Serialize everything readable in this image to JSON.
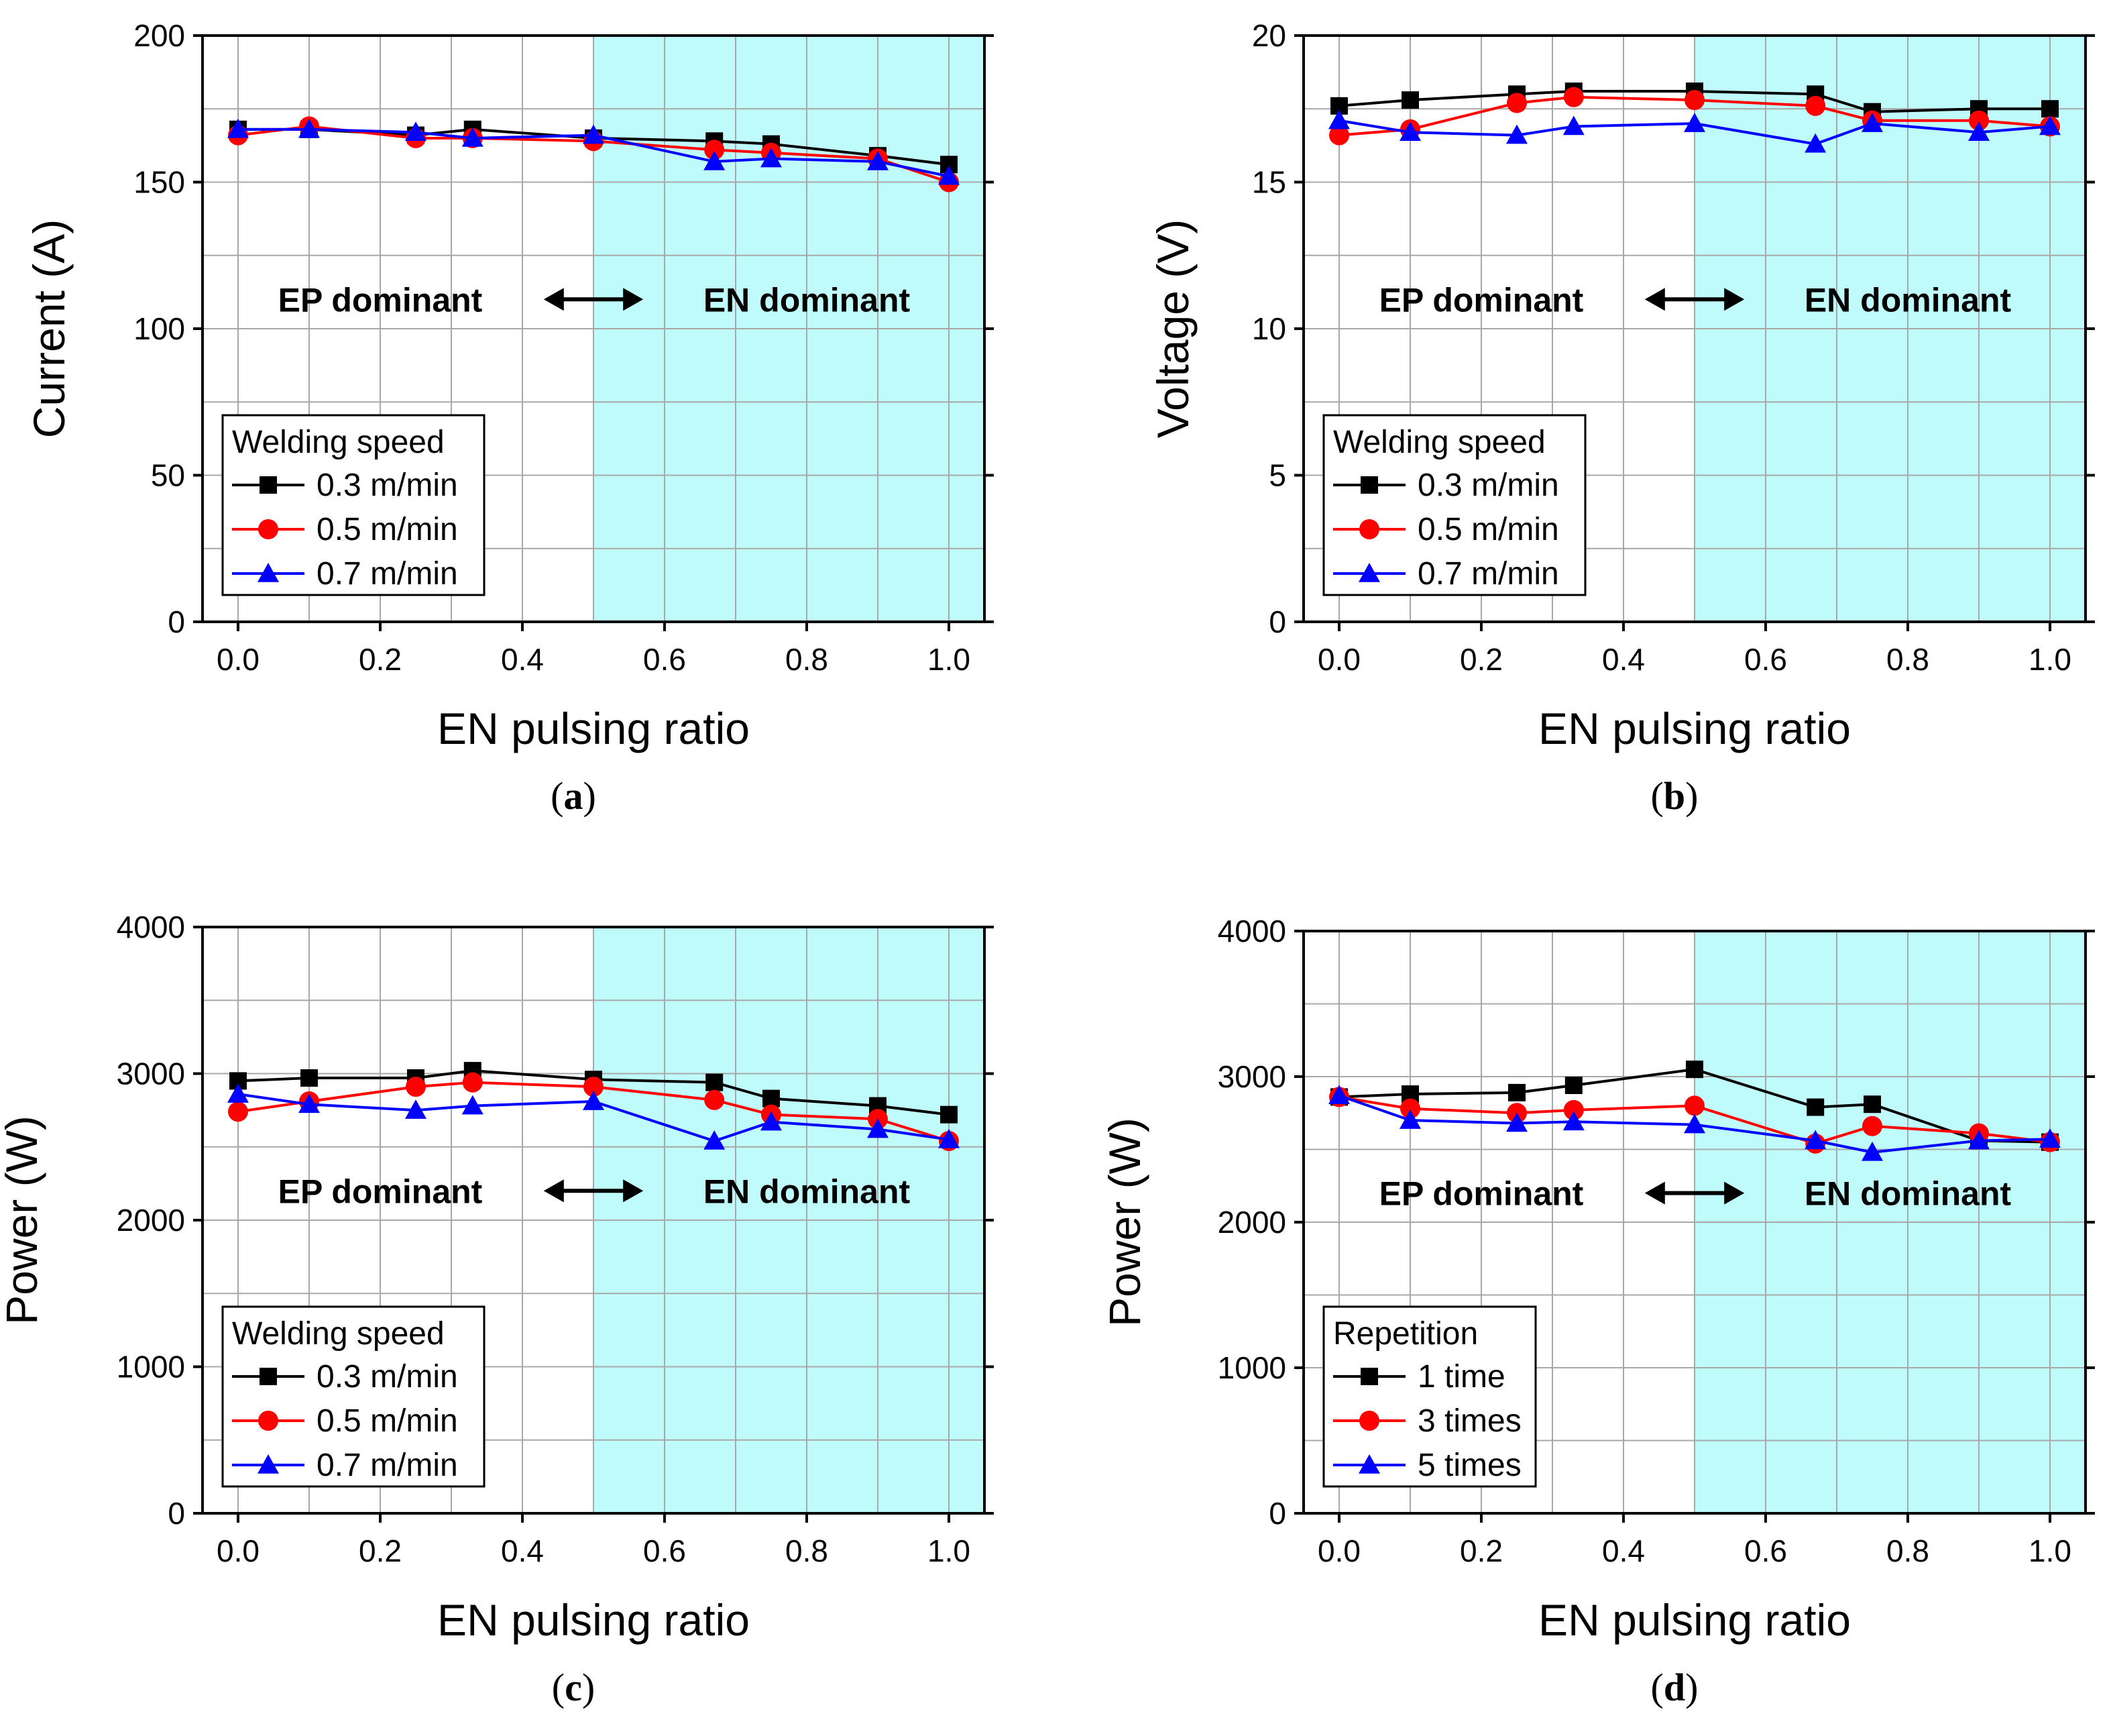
{
  "figure_title": "",
  "colors": {
    "shaded_region": "#c0fbfb",
    "grid": "#a8a8a8",
    "series_1": "#000000",
    "series_2": "#ff0000",
    "series_3": "#0000ff"
  },
  "chart_data": [
    {
      "id": "a",
      "type": "line",
      "caption_letter": "a",
      "xlabel": "EN pulsing ratio",
      "ylabel": "Current (A)",
      "xlim": [
        -0.05,
        1.05
      ],
      "ylim": [
        0,
        200
      ],
      "xticks": [
        0.0,
        0.2,
        0.4,
        0.6,
        0.8,
        1.0
      ],
      "xtick_labels": [
        "0.0",
        "0.2",
        "0.4",
        "0.6",
        "0.8",
        "1.0"
      ],
      "yticks": [
        0,
        50,
        100,
        150,
        200
      ],
      "ytick_labels": [
        "0",
        "50",
        "100",
        "150",
        "200"
      ],
      "grid": true,
      "shaded_x_from": 0.5,
      "region_left_label": "EP dominant",
      "region_right_label": "EN dominant",
      "arrow_symbol": "double-headed-arrow",
      "legend_title": "Welding speed",
      "legend_position": "lower-left",
      "x": [
        0.0,
        0.1,
        0.25,
        0.33,
        0.5,
        0.67,
        0.75,
        0.9,
        1.0
      ],
      "series": [
        {
          "name": "0.3 m/min",
          "marker": "square",
          "color": "#000000",
          "values": [
            168,
            168,
            166,
            168,
            165,
            164,
            163,
            159,
            156
          ]
        },
        {
          "name": "0.5 m/min",
          "marker": "circle",
          "color": "#ff0000",
          "values": [
            166,
            169,
            165,
            165,
            164,
            161,
            160,
            158,
            150
          ]
        },
        {
          "name": "0.7 m/min",
          "marker": "triangle",
          "color": "#0000ff",
          "values": [
            168,
            168,
            167,
            165,
            166,
            157,
            158,
            157,
            152
          ]
        }
      ]
    },
    {
      "id": "b",
      "type": "line",
      "caption_letter": "b",
      "xlabel": "EN pulsing ratio",
      "ylabel": "Voltage (V)",
      "xlim": [
        -0.05,
        1.05
      ],
      "ylim": [
        0,
        20
      ],
      "xticks": [
        0.0,
        0.2,
        0.4,
        0.6,
        0.8,
        1.0
      ],
      "xtick_labels": [
        "0.0",
        "0.2",
        "0.4",
        "0.6",
        "0.8",
        "1.0"
      ],
      "yticks": [
        0,
        5,
        10,
        15,
        20
      ],
      "ytick_labels": [
        "0",
        "5",
        "10",
        "15",
        "20"
      ],
      "grid": true,
      "shaded_x_from": 0.5,
      "region_left_label": "EP dominant",
      "region_right_label": "EN dominant",
      "arrow_symbol": "double-headed-arrow",
      "legend_title": "Welding speed",
      "legend_position": "lower-left",
      "x": [
        0.0,
        0.1,
        0.25,
        0.33,
        0.5,
        0.67,
        0.75,
        0.9,
        1.0
      ],
      "series": [
        {
          "name": "0.3 m/min",
          "marker": "square",
          "color": "#000000",
          "values": [
            17.6,
            17.8,
            18.0,
            18.1,
            18.1,
            18.0,
            17.4,
            17.5,
            17.5
          ]
        },
        {
          "name": "0.5 m/min",
          "marker": "circle",
          "color": "#ff0000",
          "values": [
            16.6,
            16.8,
            17.7,
            17.9,
            17.8,
            17.6,
            17.1,
            17.1,
            16.9
          ]
        },
        {
          "name": "0.7 m/min",
          "marker": "triangle",
          "color": "#0000ff",
          "values": [
            17.1,
            16.7,
            16.6,
            16.9,
            17.0,
            16.3,
            17.0,
            16.7,
            16.9
          ]
        }
      ]
    },
    {
      "id": "c",
      "type": "line",
      "caption_letter": "c",
      "xlabel": "EN pulsing ratio",
      "ylabel": "Power (W)",
      "xlim": [
        -0.05,
        1.05
      ],
      "ylim": [
        0,
        4000
      ],
      "xticks": [
        0.0,
        0.2,
        0.4,
        0.6,
        0.8,
        1.0
      ],
      "xtick_labels": [
        "0.0",
        "0.2",
        "0.4",
        "0.6",
        "0.8",
        "1.0"
      ],
      "yticks": [
        0,
        1000,
        2000,
        3000,
        4000
      ],
      "ytick_labels": [
        "0",
        "1000",
        "2000",
        "3000",
        "4000"
      ],
      "grid": true,
      "shaded_x_from": 0.5,
      "region_left_label": "EP dominant",
      "region_right_label": "EN dominant",
      "arrow_symbol": "double-headed-arrow",
      "legend_title": "Welding speed",
      "legend_position": "lower-left",
      "x": [
        0.0,
        0.1,
        0.25,
        0.33,
        0.5,
        0.67,
        0.75,
        0.9,
        1.0
      ],
      "series": [
        {
          "name": "0.3 m/min",
          "marker": "square",
          "color": "#000000",
          "values": [
            2950,
            2970,
            2970,
            3020,
            2960,
            2940,
            2830,
            2780,
            2720
          ]
        },
        {
          "name": "0.5 m/min",
          "marker": "circle",
          "color": "#ff0000",
          "values": [
            2740,
            2810,
            2910,
            2940,
            2910,
            2820,
            2720,
            2690,
            2540
          ]
        },
        {
          "name": "0.7 m/min",
          "marker": "triangle",
          "color": "#0000ff",
          "values": [
            2860,
            2790,
            2750,
            2780,
            2810,
            2540,
            2670,
            2620,
            2550
          ]
        }
      ]
    },
    {
      "id": "d",
      "type": "line",
      "caption_letter": "d",
      "xlabel": "EN pulsing ratio",
      "ylabel": "Power (W)",
      "xlim": [
        -0.05,
        1.05
      ],
      "ylim": [
        0,
        4000
      ],
      "xticks": [
        0.0,
        0.2,
        0.4,
        0.6,
        0.8,
        1.0
      ],
      "xtick_labels": [
        "0.0",
        "0.2",
        "0.4",
        "0.6",
        "0.8",
        "1.0"
      ],
      "yticks": [
        0,
        1000,
        2000,
        3000,
        4000
      ],
      "ytick_labels": [
        "0",
        "1000",
        "2000",
        "3000",
        "4000"
      ],
      "grid": true,
      "shaded_x_from": 0.5,
      "region_left_label": "EP dominant",
      "region_right_label": "EN dominant",
      "arrow_symbol": "double-headed-arrow",
      "legend_title": "Repetition",
      "legend_position": "lower-left",
      "x": [
        0.0,
        0.1,
        0.25,
        0.33,
        0.5,
        0.67,
        0.75,
        0.9,
        1.0
      ],
      "series": [
        {
          "name": "1 time",
          "marker": "square",
          "color": "#000000",
          "values": [
            2860,
            2880,
            2890,
            2940,
            3050,
            2790,
            2810,
            2560,
            2550
          ]
        },
        {
          "name": "3 times",
          "marker": "circle",
          "color": "#ff0000",
          "values": [
            2860,
            2780,
            2750,
            2770,
            2800,
            2540,
            2660,
            2610,
            2550
          ]
        },
        {
          "name": "5 times",
          "marker": "triangle",
          "color": "#0000ff",
          "values": [
            2870,
            2700,
            2680,
            2690,
            2670,
            2560,
            2480,
            2560,
            2570
          ]
        }
      ]
    }
  ]
}
